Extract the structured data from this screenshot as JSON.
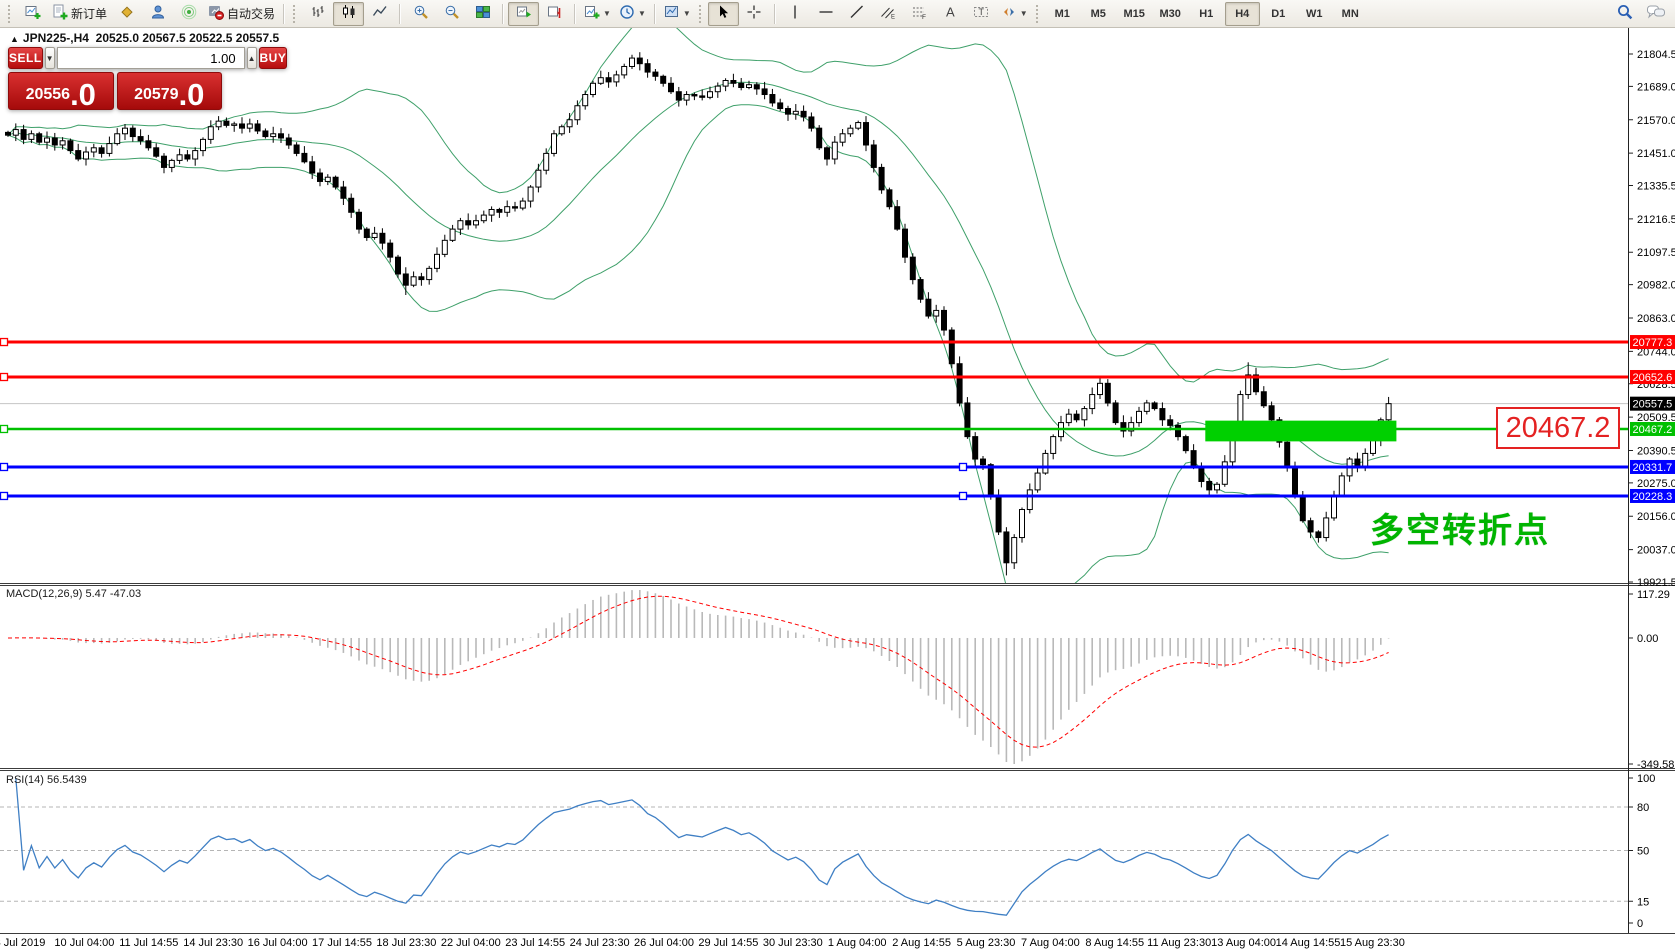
{
  "icons": {
    "spinner_up": "▲",
    "spinner_down": "▼",
    "dropdown_caret": "▼"
  },
  "toolbar": {
    "new_order": "新订单",
    "auto_trading": "自动交易",
    "timeframes": [
      "M1",
      "M5",
      "M15",
      "M30",
      "H1",
      "H4",
      "D1",
      "W1",
      "MN"
    ],
    "active_timeframe": "H4"
  },
  "symbol_header": {
    "marker": "▲",
    "symbol": "JPN225-,H4",
    "ohlc": "20525.0 20567.5 20522.5 20557.5"
  },
  "trade_panel": {
    "sell_label": "SELL",
    "buy_label": "BUY",
    "volume": "1.00",
    "sell_price": "20556",
    "sell_price_frac": ".0",
    "buy_price": "20579",
    "buy_price_frac": ".0"
  },
  "price_axis_ticks": [
    21804.5,
    21689.0,
    21570.0,
    21451.0,
    21335.5,
    21216.5,
    21097.5,
    20982.0,
    20863.0,
    20744.0,
    20628.5,
    20509.5,
    20390.5,
    20275.0,
    20156.0,
    20037.0,
    19921.5
  ],
  "price_badges": [
    {
      "text": "20777.3",
      "price": 20777.3,
      "bg": "#ff0000"
    },
    {
      "text": "20652.6",
      "price": 20652.6,
      "bg": "#ff0000"
    },
    {
      "text": "20557.5",
      "price": 20557.5,
      "bg": "#000000"
    },
    {
      "text": "20467.2",
      "price": 20467.2,
      "bg": "#00c000"
    },
    {
      "text": "20331.7",
      "price": 20331.7,
      "bg": "#0000ff"
    },
    {
      "text": "20228.3",
      "price": 20228.3,
      "bg": "#0000ff"
    }
  ],
  "hlines": [
    {
      "price": 20777.3,
      "color": "#ff0000",
      "width": 3
    },
    {
      "price": 20652.6,
      "color": "#ff0000",
      "width": 3
    },
    {
      "price": 20467.2,
      "color": "#00c000",
      "width": 2.5
    },
    {
      "price": 20331.7,
      "color": "#0000ff",
      "width": 3
    },
    {
      "price": 20228.3,
      "color": "#0000ff",
      "width": 3
    }
  ],
  "bid_line_price": 20557.5,
  "zone": {
    "top_price": 20497,
    "bottom_price": 20423,
    "from_bar": 153.5,
    "to_bar": 178,
    "color": "#00d000"
  },
  "callout": {
    "text": "20467.2"
  },
  "annotation": {
    "text": "多空转折点"
  },
  "macd_panel": {
    "label": "MACD(12,26,9) 5.47 -47.03",
    "axis_max": "117.29",
    "axis_zero": "0.00",
    "axis_min": "-349.58"
  },
  "rsi_panel": {
    "label": "RSI(14) 56.5439",
    "axis": [
      100,
      80,
      50,
      15,
      0
    ],
    "levels": [
      80,
      50,
      15
    ],
    "current": 56.5439
  },
  "time_axis": [
    "8 Jul 2019",
    "10 Jul 04:00",
    "11 Jul 14:55",
    "14 Jul 23:30",
    "16 Jul 04:00",
    "17 Jul 14:55",
    "18 Jul 23:30",
    "22 Jul 04:00",
    "23 Jul 14:55",
    "24 Jul 23:30",
    "26 Jul 04:00",
    "29 Jul 14:55",
    "30 Jul 23:30",
    "1 Aug 04:00",
    "2 Aug 14:55",
    "5 Aug 23:30",
    "7 Aug 04:00",
    "8 Aug 14:55",
    "11 Aug 23:30",
    "13 Aug 04:00",
    "14 Aug 14:55",
    "15 Aug 23:30"
  ],
  "chart_data": {
    "type": "candlestick",
    "symbol": "JPN225-",
    "timeframe": "H4",
    "price_range": {
      "axis_top": 21804.5,
      "axis_bottom": 19921.5
    },
    "first_open": 21525,
    "closes": [
      21515,
      21535,
      21500,
      21520,
      21490,
      21505,
      21480,
      21495,
      21460,
      21430,
      21455,
      21470,
      21450,
      21485,
      21520,
      21540,
      21510,
      21495,
      21470,
      21440,
      21400,
      21425,
      21445,
      21430,
      21460,
      21500,
      21545,
      21565,
      21550,
      21555,
      21540,
      21555,
      21530,
      21510,
      21520,
      21505,
      21480,
      21450,
      21420,
      21380,
      21350,
      21365,
      21330,
      21290,
      21240,
      21180,
      21150,
      21165,
      21130,
      21080,
      21020,
      20980,
      21010,
      21000,
      21040,
      21090,
      21140,
      21180,
      21210,
      21195,
      21210,
      21230,
      21250,
      21240,
      21260,
      21255,
      21280,
      21330,
      21390,
      21450,
      21520,
      21545,
      21570,
      21620,
      21660,
      21700,
      21720,
      21705,
      21730,
      21760,
      21790,
      21770,
      21740,
      21725,
      21700,
      21670,
      21640,
      21660,
      21655,
      21650,
      21670,
      21690,
      21710,
      21700,
      21685,
      21695,
      21680,
      21660,
      21630,
      21610,
      21590,
      21600,
      21580,
      21540,
      21470,
      21430,
      21490,
      21520,
      21540,
      21560,
      21480,
      21400,
      21320,
      21260,
      21180,
      21080,
      21000,
      20930,
      20870,
      20890,
      20820,
      20700,
      20560,
      20440,
      20360,
      20340,
      20230,
      20100,
      19990,
      20080,
      20180,
      20250,
      20310,
      20380,
      20440,
      20490,
      20520,
      20500,
      20540,
      20590,
      20630,
      20560,
      20490,
      20460,
      20490,
      20530,
      20560,
      20540,
      20500,
      20480,
      20440,
      20390,
      20330,
      20280,
      20250,
      20270,
      20350,
      20470,
      20590,
      20660,
      20600,
      20550,
      20500,
      20420,
      20330,
      20230,
      20140,
      20100,
      20080,
      20150,
      20230,
      20300,
      20360,
      20330,
      20380,
      20430,
      20500,
      20557.5
    ],
    "wick_overrides": {
      "51": {
        "low": 20945
      },
      "80": {
        "high": 21802
      },
      "128": {
        "low": 19945
      },
      "159": {
        "high": 20705
      }
    },
    "indicators": [
      {
        "name": "Bollinger Bands",
        "period": 20,
        "deviations": 2,
        "color": "#3fa06a"
      },
      {
        "name": "MACD",
        "fast": 12,
        "slow": 26,
        "signal": 9,
        "histogram_color": "#b9b9b9",
        "signal_color": "#ff0000"
      },
      {
        "name": "RSI",
        "period": 14,
        "color": "#3f7fc4",
        "current": 56.5439
      }
    ]
  },
  "colors": {
    "trade_red": "#c00000",
    "band": "#3fa06a",
    "bid_line": "#c4c4c4",
    "up_candle": "#ffffff",
    "down_candle": "#000000",
    "separator": "#3c3c3c",
    "rsi_line": "#3f7fc4",
    "macd_hist": "#b9b9b9",
    "macd_signal": "#ff0000"
  }
}
